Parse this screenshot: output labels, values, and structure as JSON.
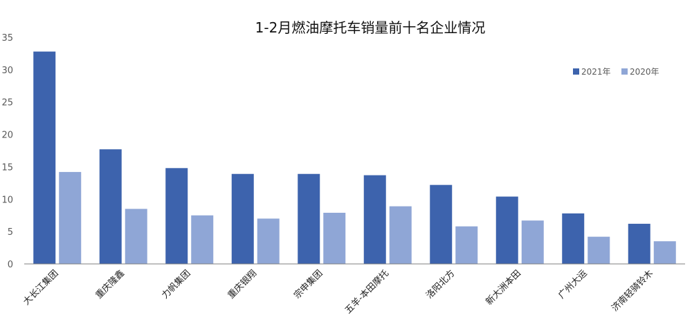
{
  "chart_data": {
    "type": "bar",
    "title": "1-2月燃油摩托车销量前十名企业情况",
    "xlabel": "",
    "ylabel": "",
    "ylim": [
      0,
      35
    ],
    "yticks": [
      0,
      5,
      10,
      15,
      20,
      25,
      30,
      35
    ],
    "grid": false,
    "legend_position": "top-right",
    "categories": [
      "大长江集团",
      "重庆隆鑫",
      "力帆集团",
      "重庆银翔",
      "宗申集团",
      "五羊-本田摩托",
      "洛阳北方",
      "新大洲本田",
      "广州大运",
      "济南轻骑铃木"
    ],
    "series": [
      {
        "name": "2021年",
        "color": "#3d63ad",
        "values": [
          32.8,
          17.7,
          14.8,
          13.9,
          13.9,
          13.7,
          12.2,
          10.4,
          7.8,
          6.2
        ]
      },
      {
        "name": "2020年",
        "color": "#8fa6d6",
        "values": [
          14.2,
          8.5,
          7.5,
          7.0,
          7.9,
          8.9,
          5.8,
          6.7,
          4.2,
          3.5
        ]
      }
    ]
  }
}
